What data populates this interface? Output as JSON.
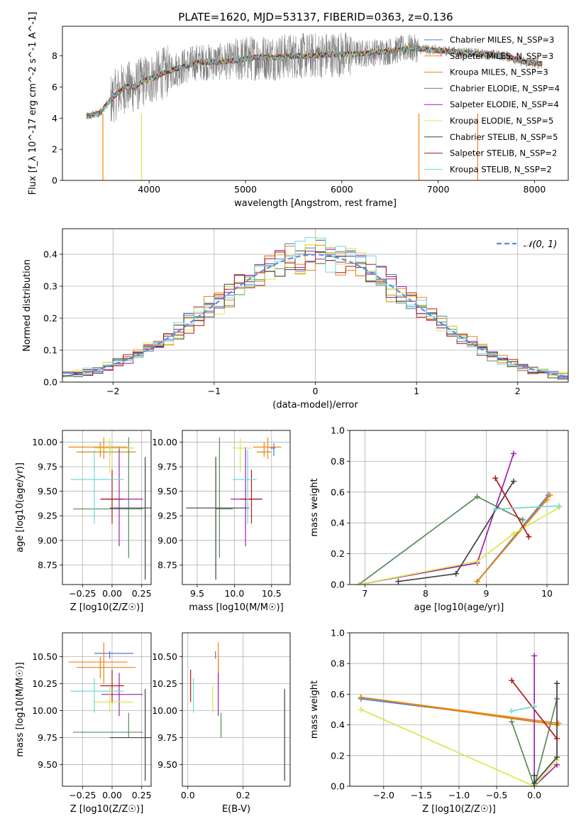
{
  "figure_title": "PLATE=1620, MJD=53137, FIBERID=0363, z=0.136",
  "chart_data": [
    {
      "id": "spec",
      "type": "line",
      "title": "PLATE=1620, MJD=53137, FIBERID=0363, z=0.136",
      "xlabel": "wavelength [Angstrom, rest frame]",
      "ylabel": "Flux [f_λ 10^-17 erg cm^-2 s^-1 A^-1]",
      "xlim": [
        3100,
        8350
      ],
      "ylim": [
        0,
        9.9
      ],
      "xticks": [
        "4000",
        "5000",
        "6000",
        "7000",
        "8000"
      ],
      "xtick_values": [
        4000,
        5000,
        6000,
        7000,
        8000
      ],
      "yticks": [
        "0",
        "2",
        "4",
        "6",
        "8"
      ],
      "ytick_values": [
        0,
        2,
        4,
        6,
        8
      ],
      "grid": false,
      "legend_placement": "right",
      "data_line_color": "#808080",
      "continuum": {
        "x": [
          3350,
          3480,
          3550,
          3650,
          3750,
          3850,
          3950,
          4050,
          4150,
          4300,
          4500,
          4700,
          4900,
          5100,
          5300,
          5500,
          5700,
          5900,
          6100,
          6300,
          6500,
          6700,
          6900,
          7100,
          7300,
          7500,
          7700,
          7900,
          8080
        ],
        "y": [
          4.1,
          4.3,
          4.8,
          5.5,
          6.0,
          6.0,
          6.4,
          6.6,
          6.9,
          7.2,
          7.6,
          7.6,
          7.7,
          7.9,
          7.9,
          8.0,
          8.0,
          8.1,
          8.1,
          8.2,
          8.3,
          8.5,
          8.4,
          8.3,
          8.2,
          8.1,
          8.0,
          7.6,
          7.5
        ]
      },
      "series": [
        {
          "name": "Chabrier MILES, N_SSP=3",
          "color": "#4a7bd6"
        },
        {
          "name": "Salpeter MILES, N_SSP=3",
          "color": "#ff7f0e"
        },
        {
          "name": "Kroupa MILES, N_SSP=3",
          "color": "#d68a17"
        },
        {
          "name": "Chabrier ELODIE, N_SSP=4",
          "color": "#5a8a5a"
        },
        {
          "name": "Salpeter ELODIE, N_SSP=4",
          "color": "#a020b0"
        },
        {
          "name": "Kroupa ELODIE, N_SSP=5",
          "color": "#d8e84a"
        },
        {
          "name": "Chabrier STELIB, N_SSP=5",
          "color": "#404040"
        },
        {
          "name": "Salpeter STELIB, N_SSP=2",
          "color": "#b01818"
        },
        {
          "name": "Kroupa STELIB, N_SSP=2",
          "color": "#70d8d8"
        }
      ]
    },
    {
      "id": "resid",
      "type": "line",
      "xlabel": "(data-model)/error",
      "ylabel": "Normed distribution",
      "xlim": [
        -2.5,
        2.5
      ],
      "ylim": [
        0,
        0.48
      ],
      "xticks": [
        "−2",
        "−1",
        "0",
        "1",
        "2"
      ],
      "xtick_values": [
        -2,
        -1,
        0,
        1,
        2
      ],
      "yticks": [
        "0.0",
        "0.1",
        "0.2",
        "0.3",
        "0.4"
      ],
      "ytick_values": [
        0,
        0.1,
        0.2,
        0.3,
        0.4
      ],
      "grid": true,
      "legend": "𝒩(0, 1)",
      "legend_placement": "top-right",
      "gauss_color": "#5a8ed6"
    },
    {
      "id": "ageZ",
      "type": "scatter",
      "xlabel": "Z [log10(Z/Z☉)]",
      "ylabel": "age  [log10(age/yr)]",
      "xlim": [
        -0.42,
        0.33
      ],
      "ylim": [
        8.55,
        10.12
      ],
      "xticks": [
        "−0.25",
        "0.00",
        "0.25"
      ],
      "xtick_values": [
        -0.25,
        0,
        0.25
      ],
      "yticks": [
        "8.75",
        "9.00",
        "9.25",
        "9.50",
        "9.75",
        "10.00"
      ],
      "ytick_values": [
        8.75,
        9,
        9.25,
        9.5,
        9.75,
        10
      ],
      "grid": true
    },
    {
      "id": "agemass",
      "type": "scatter",
      "xlabel": "mass [log10(M/M☉)]",
      "xlim": [
        9.3,
        10.75
      ],
      "ylim": [
        8.55,
        10.12
      ],
      "xticks": [
        "9.5",
        "10.0",
        "10.5"
      ],
      "xtick_values": [
        9.5,
        10,
        10.5
      ],
      "yticks": [
        "8.75",
        "9.00",
        "9.25",
        "9.50",
        "9.75",
        "10.00"
      ],
      "ytick_values": [
        8.75,
        9,
        9.25,
        9.5,
        9.75,
        10
      ],
      "grid": true
    },
    {
      "id": "wage",
      "type": "line",
      "xlabel": "age  [log10(age/yr)]",
      "ylabel": "mass weight",
      "xlim": [
        6.75,
        10.35
      ],
      "ylim": [
        0,
        1
      ],
      "xticks": [
        "7",
        "8",
        "9",
        "10"
      ],
      "xtick_values": [
        7,
        8,
        9,
        10
      ],
      "yticks": [
        "0.0",
        "0.2",
        "0.4",
        "0.6",
        "0.8",
        "1.0"
      ],
      "ytick_values": [
        0,
        0.2,
        0.4,
        0.6,
        0.8,
        1
      ],
      "grid": true
    },
    {
      "id": "massZ",
      "type": "scatter",
      "xlabel": "Z [log10(Z/Z☉)]",
      "ylabel": "mass [log10(M/M☉)]",
      "xlim": [
        -0.42,
        0.33
      ],
      "ylim": [
        9.3,
        10.72
      ],
      "xticks": [
        "−0.25",
        "0.00",
        "0.25"
      ],
      "xtick_values": [
        -0.25,
        0,
        0.25
      ],
      "yticks": [
        "9.50",
        "9.75",
        "10.00",
        "10.25",
        "10.50"
      ],
      "ytick_values": [
        9.5,
        9.75,
        10,
        10.25,
        10.5
      ],
      "grid": true
    },
    {
      "id": "massEBV",
      "type": "scatter",
      "xlabel": "E(B-V)",
      "xlim": [
        -0.02,
        0.37
      ],
      "ylim": [
        9.3,
        10.72
      ],
      "xticks": [
        "0.0",
        "0.2"
      ],
      "xtick_values": [
        0,
        0.2
      ],
      "yticks": [
        "9.50",
        "9.75",
        "10.00",
        "10.25",
        "10.50"
      ],
      "ytick_values": [
        9.5,
        9.75,
        10,
        10.25,
        10.5
      ],
      "grid": true
    },
    {
      "id": "wZ",
      "type": "line",
      "xlabel": "Z [log10(Z/Z☉)]",
      "ylabel": "mass weight",
      "xlim": [
        -2.45,
        0.45
      ],
      "ylim": [
        0,
        1
      ],
      "xticks": [
        "−2.0",
        "−1.5",
        "−1.0",
        "−0.5",
        "0.0"
      ],
      "xtick_values": [
        -2,
        -1.5,
        -1,
        -0.5,
        0
      ],
      "yticks": [
        "0.0",
        "0.2",
        "0.4",
        "0.6",
        "0.8",
        "1.0"
      ],
      "ytick_values": [
        0,
        0.2,
        0.4,
        0.6,
        0.8,
        1
      ],
      "grid": true
    }
  ],
  "models": [
    {
      "name": "Chabrier MILES",
      "color": "#4a7bd6",
      "Z": -0.02,
      "Zerr": [
        0.13,
        0.2
      ],
      "age": 9.94,
      "ageErr": [
        0.08,
        0.05
      ],
      "mass": 10.53,
      "massErr": [
        0.05,
        0.02
      ],
      "ebv": 0.1,
      "ages": [
        8.85,
        10.02
      ],
      "weights": [
        0.02,
        0.58
      ],
      "Zs": [
        -2.3,
        0.32
      ],
      "Zw": [
        0.57,
        0.41
      ]
    },
    {
      "name": "Salpeter MILES",
      "color": "#ff7f0e",
      "Z": -0.07,
      "Zerr": [
        0.3,
        0.2
      ],
      "age": 9.95,
      "ageErr": [
        0.12,
        0.1
      ],
      "mass": 10.45,
      "massErr": [
        0.2,
        0.18
      ],
      "ebv": 0.11,
      "ages": [
        8.85,
        10.05
      ],
      "weights": [
        0.02,
        0.58
      ],
      "Zs": [
        -2.3,
        0.32
      ],
      "Zw": [
        0.58,
        0.41
      ]
    },
    {
      "name": "Kroupa MILES, N_SSP=3",
      "color": "#d68a17",
      "Z": -0.1,
      "Zerr": [
        0.2,
        0.3
      ],
      "age": 9.9,
      "ageErr": [
        0.05,
        0.1
      ],
      "mass": 10.4,
      "massErr": [
        0.1,
        0.1
      ],
      "ebv": 0.11,
      "ages": [
        8.85,
        10.0
      ],
      "weights": [
        0.02,
        0.55
      ],
      "Zs": [
        -2.3,
        0.3
      ],
      "Zw": [
        0.58,
        0.4
      ]
    },
    {
      "name": "Chabrier ELODIE",
      "color": "#5a8a5a",
      "Z": 0.14,
      "Zerr": [
        0.47,
        0.12
      ],
      "age": 9.32,
      "ageErr": [
        0.5,
        0.73
      ],
      "mass": 9.8,
      "massErr": [
        0.05,
        0.18
      ],
      "ebv": 0.12,
      "ages": [
        6.9,
        8.85,
        9.6
      ],
      "weights": [
        0,
        0.57,
        0.42
      ],
      "Zs": [
        -0.3,
        0.0,
        0.3
      ],
      "Zw": [
        0.42,
        0.0,
        0.57
      ]
    },
    {
      "name": "Salpeter ELODIE",
      "color": "#a020b0",
      "Z": 0.06,
      "Zerr": [
        0.15,
        0.2
      ],
      "age": 9.42,
      "ageErr": [
        0.48,
        0.53
      ],
      "mass": 10.15,
      "massErr": [
        0.2,
        0.2
      ],
      "ebv": 0.11,
      "ages": [
        6.9,
        8.85,
        9.45
      ],
      "weights": [
        0,
        0.14,
        0.85
      ],
      "Zs": [
        0.0,
        0.0,
        0.3
      ],
      "Zw": [
        0.85,
        0.0,
        0.14
      ]
    },
    {
      "name": "Kroupa ELODIE",
      "color": "#d8e84a",
      "Z": -0.02,
      "Zerr": [
        0.13,
        0.2
      ],
      "age": 9.94,
      "ageErr": [
        0.25,
        0.1
      ],
      "mass": 10.08,
      "massErr": [
        0.1,
        0.15
      ],
      "ebv": 0.09,
      "ages": [
        6.9,
        8.85,
        9.45,
        10.2
      ],
      "weights": [
        0,
        0.15,
        0.33,
        0.5
      ],
      "Zs": [
        -2.3,
        0.0,
        0.3
      ],
      "Zw": [
        0.5,
        0.0,
        0.17
      ]
    },
    {
      "name": "Chabrier STELIB",
      "color": "#404040",
      "Z": 0.28,
      "Zerr": [
        0.3,
        0.25
      ],
      "age": 9.33,
      "ageErr": [
        0.73,
        0.52
      ],
      "mass": 9.75,
      "massErr": [
        0.4,
        0.45
      ],
      "ebv": 0.35,
      "ages": [
        7.55,
        8.5,
        9.45
      ],
      "weights": [
        0.02,
        0.07,
        0.67
      ],
      "Zs": [
        -0.0,
        0.0,
        0.3,
        0.3
      ],
      "Zw": [
        0.07,
        0.02,
        0.19,
        0.67
      ]
    },
    {
      "name": "Salpeter STELIB",
      "color": "#b01818",
      "Z": 0.0,
      "Zerr": [
        0.1,
        0.1
      ],
      "age": 9.42,
      "ageErr": [
        0.25,
        0.3
      ],
      "mass": 10.23,
      "massErr": [
        0.15,
        0.15
      ],
      "ebv": 0.01,
      "ages": [
        9.15,
        9.7
      ],
      "weights": [
        0.69,
        0.31
      ],
      "Zs": [
        -0.3,
        0.3
      ],
      "Zw": [
        0.69,
        0.31
      ]
    },
    {
      "name": "Kroupa STELIB",
      "color": "#70d8d8",
      "Z": -0.15,
      "Zerr": [
        0.2,
        0.25
      ],
      "age": 9.62,
      "ageErr": [
        0.45,
        0.3
      ],
      "mass": 10.18,
      "massErr": [
        0.2,
        0.12
      ],
      "ebv": 0.02,
      "ages": [
        9.15,
        10.2
      ],
      "weights": [
        0.49,
        0.51
      ],
      "Zs": [
        -0.3,
        0.0
      ],
      "Zw": [
        0.49,
        0.52
      ]
    }
  ]
}
